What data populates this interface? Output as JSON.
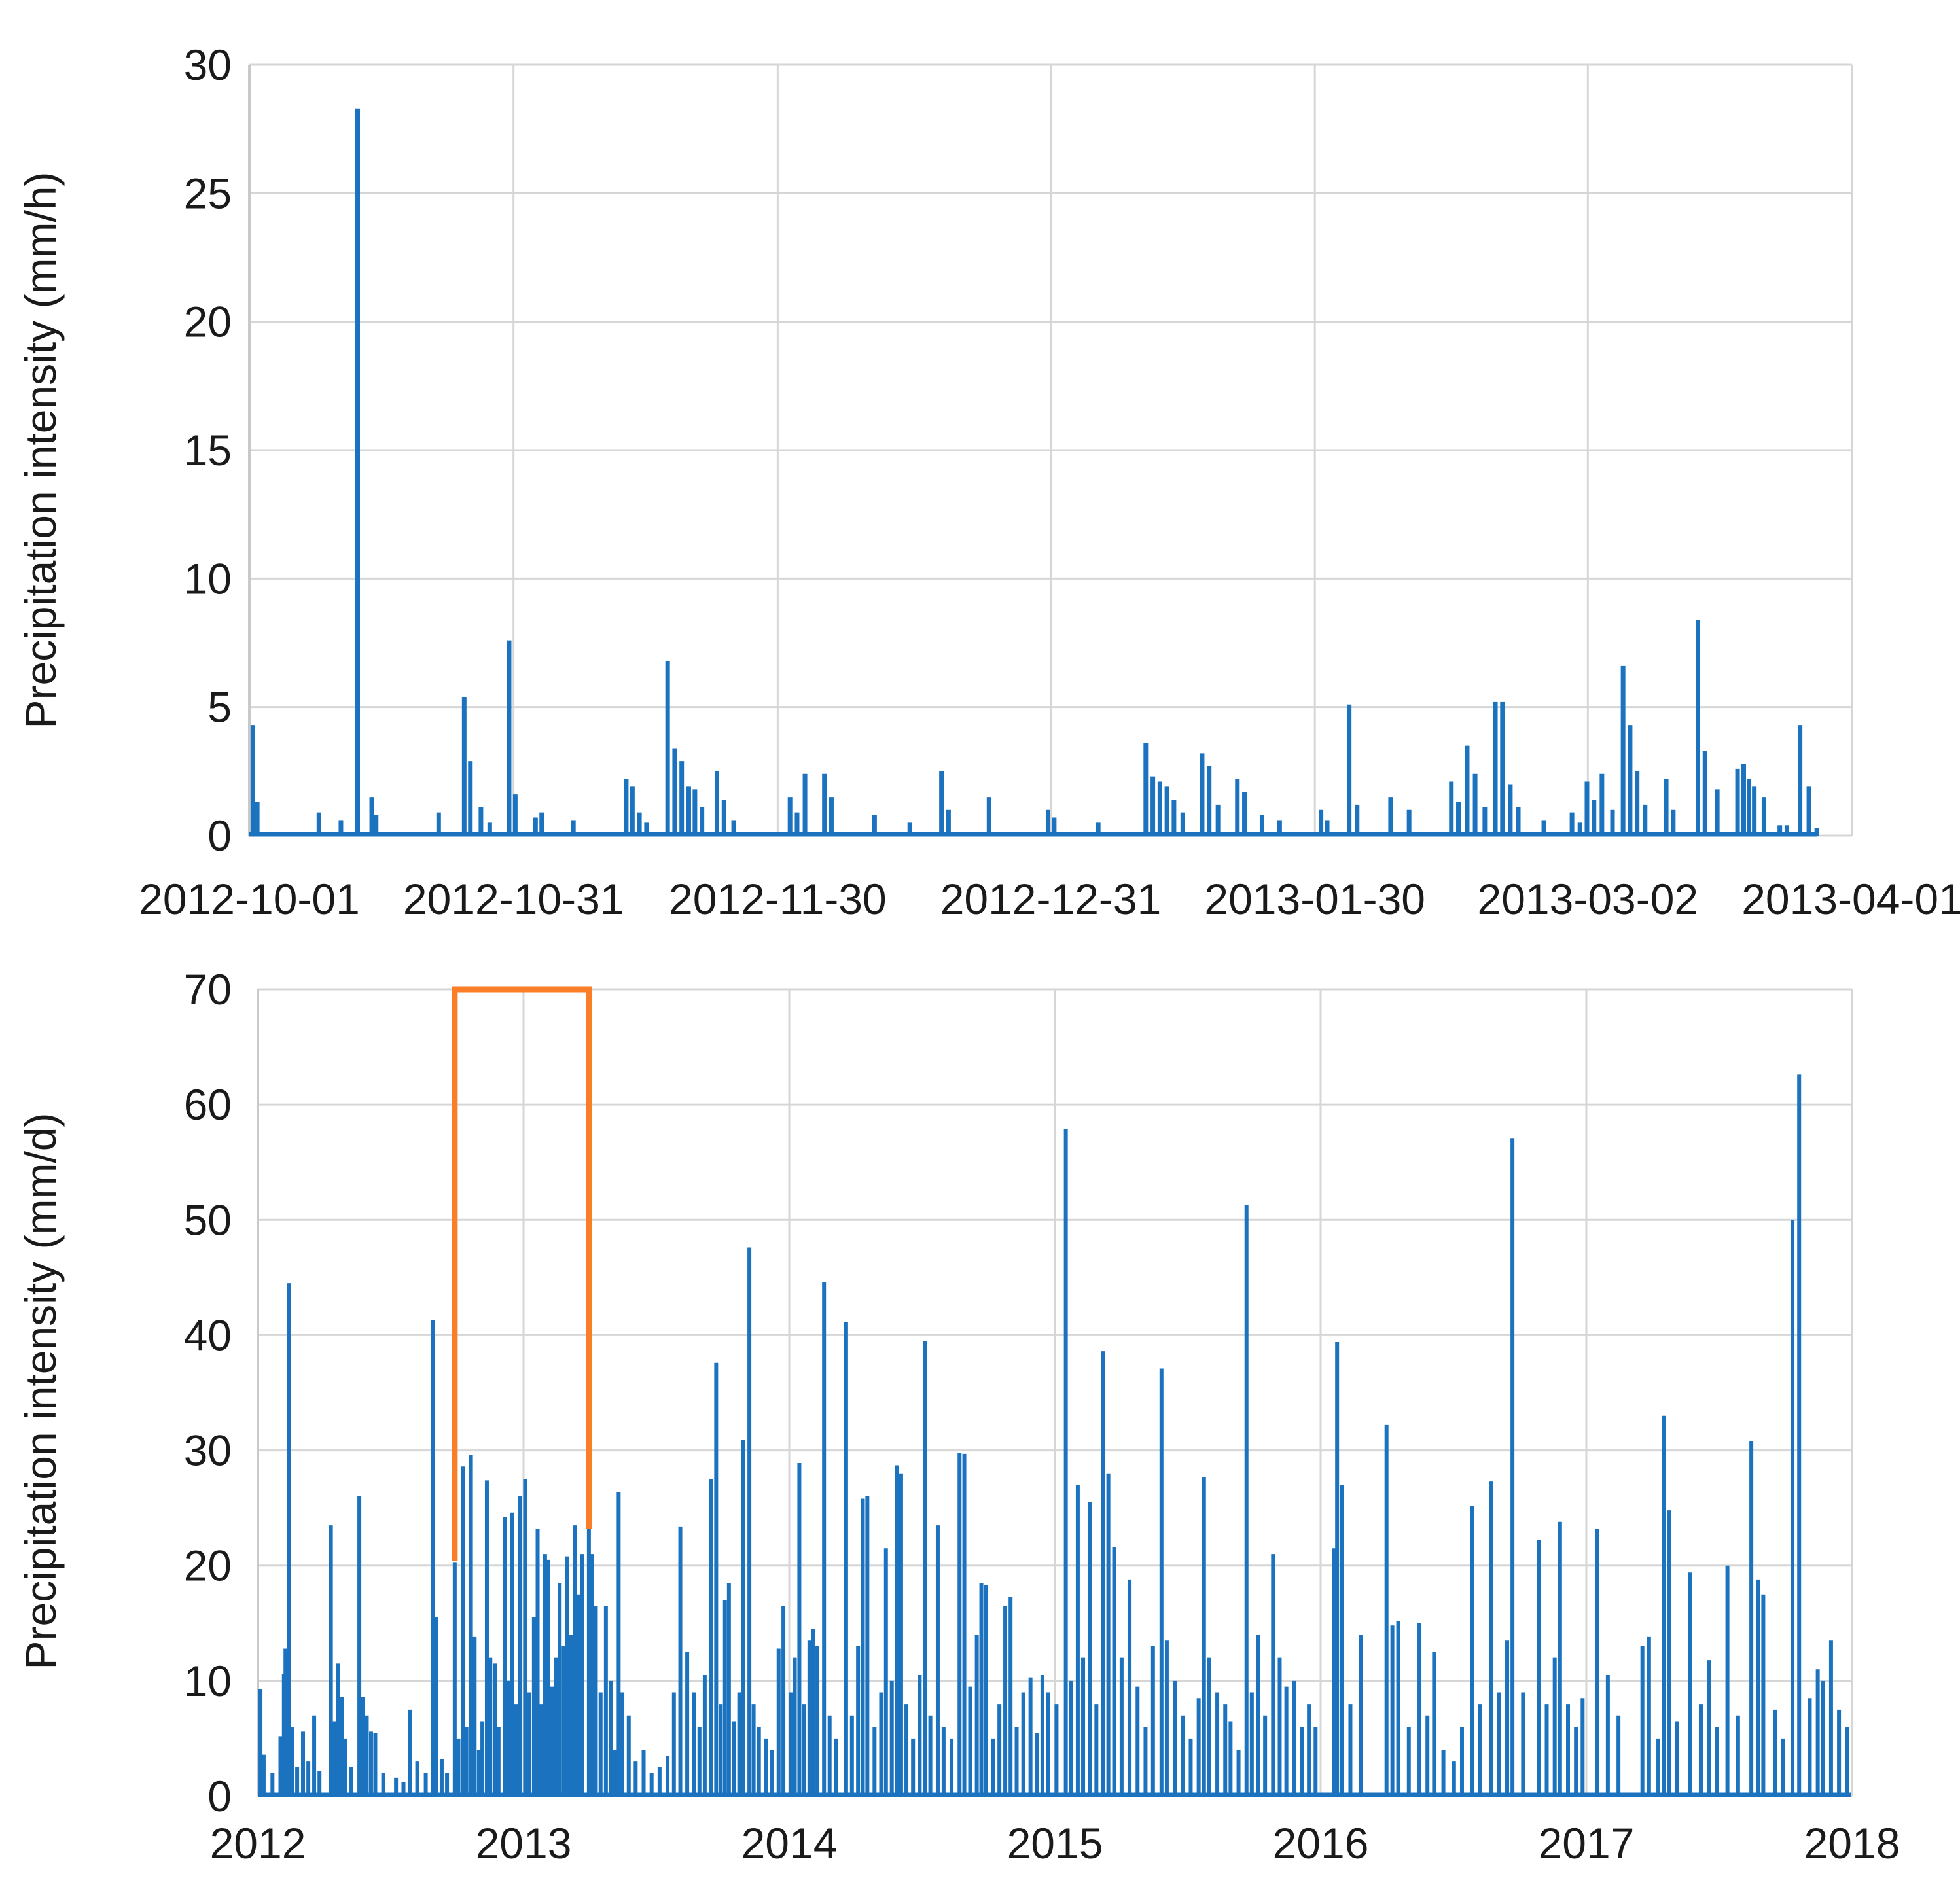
{
  "colors": {
    "bar_blue": "#1B72BE",
    "highlight_orange": "#F97E27",
    "gridline_gray": "#D6D6D6",
    "text_dark": "#1a1a1a"
  },
  "chart_data": [
    {
      "type": "bar",
      "title": "",
      "ylabel": "Precipitation intensity (mm/h)",
      "xlabel": "",
      "ylim": [
        0,
        30
      ],
      "yticks": [
        0,
        5,
        10,
        15,
        20,
        25,
        30
      ],
      "ytick_labels": [
        "0",
        "5",
        "10",
        "15",
        "20",
        "25",
        "30"
      ],
      "xtick_labels": [
        "2012-10-01",
        "2012-10-31",
        "2012-11-30",
        "2012-12-31",
        "2013-01-30",
        "2013-03-02",
        "2013-04-01"
      ],
      "xtick_positions_days": [
        0,
        30,
        60,
        91,
        121,
        152,
        182
      ],
      "x_unit": "days since 2012-10-01",
      "grid": true,
      "legend": "none",
      "series_day_mmh": [
        [
          0.4,
          4.3
        ],
        [
          0.9,
          1.3
        ],
        [
          7.9,
          0.9
        ],
        [
          10.4,
          0.6
        ],
        [
          12.3,
          28.3
        ],
        [
          13.9,
          1.5
        ],
        [
          14.4,
          0.8
        ],
        [
          21.5,
          0.9
        ],
        [
          24.4,
          5.4
        ],
        [
          25.1,
          2.9
        ],
        [
          26.3,
          1.1
        ],
        [
          27.3,
          0.5
        ],
        [
          29.5,
          7.6
        ],
        [
          30.2,
          1.6
        ],
        [
          32.5,
          0.7
        ],
        [
          33.2,
          0.9
        ],
        [
          36.8,
          0.6
        ],
        [
          42.8,
          2.2
        ],
        [
          43.5,
          1.9
        ],
        [
          44.3,
          0.9
        ],
        [
          45.1,
          0.5
        ],
        [
          47.5,
          6.8
        ],
        [
          48.3,
          3.4
        ],
        [
          49.1,
          2.9
        ],
        [
          49.9,
          1.9
        ],
        [
          50.6,
          1.8
        ],
        [
          51.4,
          1.1
        ],
        [
          53.1,
          2.5
        ],
        [
          53.9,
          1.4
        ],
        [
          55.0,
          0.6
        ],
        [
          61.4,
          1.5
        ],
        [
          62.2,
          0.9
        ],
        [
          63.1,
          2.4
        ],
        [
          65.3,
          2.4
        ],
        [
          66.1,
          1.5
        ],
        [
          71.0,
          0.8
        ],
        [
          75.0,
          0.5
        ],
        [
          78.6,
          2.5
        ],
        [
          79.4,
          1.0
        ],
        [
          84.0,
          1.5
        ],
        [
          90.7,
          1.0
        ],
        [
          91.4,
          0.7
        ],
        [
          96.4,
          0.5
        ],
        [
          101.8,
          3.6
        ],
        [
          102.6,
          2.3
        ],
        [
          103.4,
          2.1
        ],
        [
          104.2,
          1.9
        ],
        [
          105.0,
          1.4
        ],
        [
          106.0,
          0.9
        ],
        [
          108.2,
          3.2
        ],
        [
          109.0,
          2.7
        ],
        [
          110.0,
          1.2
        ],
        [
          112.2,
          2.2
        ],
        [
          113.0,
          1.7
        ],
        [
          115.0,
          0.8
        ],
        [
          117.0,
          0.6
        ],
        [
          121.7,
          1.0
        ],
        [
          122.4,
          0.6
        ],
        [
          124.9,
          5.1
        ],
        [
          125.8,
          1.2
        ],
        [
          129.6,
          1.5
        ],
        [
          131.7,
          1.0
        ],
        [
          136.5,
          2.1
        ],
        [
          137.3,
          1.3
        ],
        [
          138.3,
          3.5
        ],
        [
          139.2,
          2.4
        ],
        [
          140.3,
          1.1
        ],
        [
          141.5,
          5.2
        ],
        [
          142.3,
          5.2
        ],
        [
          143.2,
          2.0
        ],
        [
          144.1,
          1.1
        ],
        [
          147.0,
          0.6
        ],
        [
          150.2,
          0.9
        ],
        [
          151.1,
          0.5
        ],
        [
          151.9,
          2.1
        ],
        [
          152.7,
          1.4
        ],
        [
          153.6,
          2.4
        ],
        [
          154.8,
          1.0
        ],
        [
          156.0,
          6.6
        ],
        [
          156.8,
          4.3
        ],
        [
          157.6,
          2.5
        ],
        [
          158.5,
          1.2
        ],
        [
          160.9,
          2.2
        ],
        [
          161.7,
          1.0
        ],
        [
          164.5,
          8.4
        ],
        [
          165.3,
          3.3
        ],
        [
          166.7,
          1.8
        ],
        [
          169.0,
          2.6
        ],
        [
          169.7,
          2.8
        ],
        [
          170.3,
          2.2
        ],
        [
          170.9,
          1.9
        ],
        [
          172.0,
          1.5
        ],
        [
          173.8,
          0.4
        ],
        [
          174.6,
          0.4
        ],
        [
          176.1,
          4.3
        ],
        [
          177.1,
          1.9
        ],
        [
          178.0,
          0.3
        ]
      ]
    },
    {
      "type": "bar",
      "title": "",
      "ylabel": "Precipitation intensity (mm/d)",
      "xlabel": "",
      "ylim": [
        0,
        70
      ],
      "yticks": [
        0,
        10,
        20,
        30,
        40,
        50,
        60,
        70
      ],
      "ytick_labels": [
        "0",
        "10",
        "20",
        "30",
        "40",
        "50",
        "60",
        "70"
      ],
      "xtick_labels": [
        "2012",
        "2013",
        "2014",
        "2015",
        "2016",
        "2017",
        "2018"
      ],
      "xtick_positions_years": [
        0,
        1,
        2,
        3,
        4,
        5,
        6
      ],
      "x_unit": "decimal years since 2012-01-01",
      "grid": true,
      "legend": "none",
      "highlight_box": {
        "x_start_year": 0.741,
        "x_end_year": 1.246,
        "y_top": 70,
        "y_left_bottom": 20.4,
        "y_right_bottom": 23.2,
        "meaning": "period shown in upper chart (2012-10-01 to 2013-04-01)"
      },
      "series_year_mmd": [
        [
          0.01,
          9.3
        ],
        [
          0.022,
          3.6
        ],
        [
          0.055,
          2.0
        ],
        [
          0.085,
          5.2
        ],
        [
          0.098,
          10.6
        ],
        [
          0.104,
          12.8
        ],
        [
          0.118,
          44.5
        ],
        [
          0.13,
          6.0
        ],
        [
          0.148,
          2.5
        ],
        [
          0.17,
          5.6
        ],
        [
          0.19,
          3.0
        ],
        [
          0.212,
          7.0
        ],
        [
          0.232,
          2.2
        ],
        [
          0.275,
          23.5
        ],
        [
          0.288,
          6.5
        ],
        [
          0.302,
          11.5
        ],
        [
          0.316,
          8.6
        ],
        [
          0.33,
          5.0
        ],
        [
          0.352,
          2.5
        ],
        [
          0.382,
          26.0
        ],
        [
          0.395,
          8.6
        ],
        [
          0.41,
          7.0
        ],
        [
          0.426,
          5.6
        ],
        [
          0.442,
          5.5
        ],
        [
          0.472,
          2.0
        ],
        [
          0.52,
          1.6
        ],
        [
          0.548,
          1.2
        ],
        [
          0.572,
          7.5
        ],
        [
          0.6,
          3.0
        ],
        [
          0.632,
          2.0
        ],
        [
          0.658,
          41.3
        ],
        [
          0.67,
          15.5
        ],
        [
          0.692,
          3.2
        ],
        [
          0.712,
          2.0
        ],
        [
          0.741,
          20.3
        ],
        [
          0.755,
          5.0
        ],
        [
          0.772,
          28.6
        ],
        [
          0.785,
          6.0
        ],
        [
          0.802,
          29.6
        ],
        [
          0.816,
          13.8
        ],
        [
          0.832,
          4.0
        ],
        [
          0.845,
          6.5
        ],
        [
          0.862,
          27.4
        ],
        [
          0.875,
          12.0
        ],
        [
          0.892,
          11.5
        ],
        [
          0.906,
          6.0
        ],
        [
          0.93,
          24.2
        ],
        [
          0.944,
          10.0
        ],
        [
          0.958,
          24.6
        ],
        [
          0.971,
          8.0
        ],
        [
          0.986,
          26.0
        ],
        [
          1.006,
          27.5
        ],
        [
          1.021,
          9.0
        ],
        [
          1.039,
          15.5
        ],
        [
          1.053,
          23.2
        ],
        [
          1.066,
          8.0
        ],
        [
          1.081,
          21.0
        ],
        [
          1.093,
          20.5
        ],
        [
          1.106,
          9.5
        ],
        [
          1.121,
          12.0
        ],
        [
          1.136,
          18.5
        ],
        [
          1.151,
          13.0
        ],
        [
          1.164,
          20.8
        ],
        [
          1.179,
          14.0
        ],
        [
          1.193,
          23.5
        ],
        [
          1.206,
          17.5
        ],
        [
          1.22,
          21.0
        ],
        [
          1.246,
          23.3
        ],
        [
          1.258,
          21.0
        ],
        [
          1.272,
          16.5
        ],
        [
          1.29,
          9.0
        ],
        [
          1.31,
          16.5
        ],
        [
          1.33,
          10.0
        ],
        [
          1.344,
          4.0
        ],
        [
          1.358,
          26.4
        ],
        [
          1.372,
          9.0
        ],
        [
          1.396,
          7.0
        ],
        [
          1.422,
          3.0
        ],
        [
          1.452,
          4.0
        ],
        [
          1.482,
          2.0
        ],
        [
          1.512,
          2.5
        ],
        [
          1.542,
          3.5
        ],
        [
          1.566,
          9.0
        ],
        [
          1.59,
          23.4
        ],
        [
          1.616,
          12.5
        ],
        [
          1.642,
          9.0
        ],
        [
          1.662,
          6.0
        ],
        [
          1.682,
          10.5
        ],
        [
          1.706,
          27.5
        ],
        [
          1.725,
          37.6
        ],
        [
          1.742,
          8.0
        ],
        [
          1.758,
          17.0
        ],
        [
          1.773,
          18.5
        ],
        [
          1.792,
          6.5
        ],
        [
          1.812,
          9.0
        ],
        [
          1.827,
          30.9
        ],
        [
          1.85,
          47.6
        ],
        [
          1.866,
          8.0
        ],
        [
          1.886,
          6.0
        ],
        [
          1.912,
          5.0
        ],
        [
          1.936,
          4.0
        ],
        [
          1.96,
          12.8
        ],
        [
          1.978,
          16.5
        ],
        [
          2.006,
          9.0
        ],
        [
          2.021,
          12.0
        ],
        [
          2.038,
          28.9
        ],
        [
          2.056,
          8.0
        ],
        [
          2.076,
          13.5
        ],
        [
          2.091,
          14.5
        ],
        [
          2.106,
          13.0
        ],
        [
          2.131,
          44.6
        ],
        [
          2.152,
          7.0
        ],
        [
          2.176,
          5.0
        ],
        [
          2.214,
          41.1
        ],
        [
          2.236,
          7.0
        ],
        [
          2.259,
          13.0
        ],
        [
          2.277,
          25.8
        ],
        [
          2.294,
          26.0
        ],
        [
          2.321,
          6.0
        ],
        [
          2.346,
          9.0
        ],
        [
          2.364,
          21.5
        ],
        [
          2.386,
          10.0
        ],
        [
          2.404,
          28.7
        ],
        [
          2.421,
          28.0
        ],
        [
          2.441,
          8.0
        ],
        [
          2.466,
          5.0
        ],
        [
          2.491,
          10.5
        ],
        [
          2.511,
          39.5
        ],
        [
          2.531,
          7.0
        ],
        [
          2.559,
          23.5
        ],
        [
          2.581,
          6.0
        ],
        [
          2.611,
          5.0
        ],
        [
          2.641,
          29.8
        ],
        [
          2.659,
          29.7
        ],
        [
          2.681,
          9.5
        ],
        [
          2.706,
          14.0
        ],
        [
          2.723,
          18.5
        ],
        [
          2.741,
          18.3
        ],
        [
          2.766,
          5.0
        ],
        [
          2.791,
          8.0
        ],
        [
          2.813,
          16.5
        ],
        [
          2.833,
          17.3
        ],
        [
          2.856,
          6.0
        ],
        [
          2.881,
          9.0
        ],
        [
          2.908,
          10.3
        ],
        [
          2.931,
          5.5
        ],
        [
          2.953,
          10.5
        ],
        [
          2.973,
          9.0
        ],
        [
          3.006,
          8.0
        ],
        [
          3.041,
          57.9
        ],
        [
          3.061,
          10.0
        ],
        [
          3.086,
          27.0
        ],
        [
          3.106,
          12.0
        ],
        [
          3.131,
          25.5
        ],
        [
          3.156,
          8.0
        ],
        [
          3.181,
          38.6
        ],
        [
          3.201,
          28.0
        ],
        [
          3.223,
          21.6
        ],
        [
          3.251,
          12.0
        ],
        [
          3.281,
          18.8
        ],
        [
          3.311,
          9.5
        ],
        [
          3.341,
          6.0
        ],
        [
          3.369,
          13.0
        ],
        [
          3.401,
          37.1
        ],
        [
          3.421,
          13.5
        ],
        [
          3.451,
          10.0
        ],
        [
          3.481,
          7.0
        ],
        [
          3.511,
          5.0
        ],
        [
          3.541,
          8.5
        ],
        [
          3.561,
          27.7
        ],
        [
          3.581,
          12.0
        ],
        [
          3.611,
          9.0
        ],
        [
          3.641,
          8.0
        ],
        [
          3.661,
          6.5
        ],
        [
          3.691,
          4.0
        ],
        [
          3.721,
          51.3
        ],
        [
          3.741,
          9.0
        ],
        [
          3.766,
          14.0
        ],
        [
          3.791,
          7.0
        ],
        [
          3.821,
          21.0
        ],
        [
          3.846,
          12.0
        ],
        [
          3.871,
          9.5
        ],
        [
          3.901,
          10.0
        ],
        [
          3.931,
          6.0
        ],
        [
          3.956,
          8.0
        ],
        [
          3.981,
          6.0
        ],
        [
          4.05,
          21.5
        ],
        [
          4.062,
          39.4
        ],
        [
          4.08,
          27.0
        ],
        [
          4.112,
          8.0
        ],
        [
          4.152,
          14.0
        ],
        [
          4.248,
          32.2
        ],
        [
          4.27,
          14.8
        ],
        [
          4.292,
          15.2
        ],
        [
          4.332,
          6.0
        ],
        [
          4.372,
          15.0
        ],
        [
          4.402,
          7.0
        ],
        [
          4.427,
          12.5
        ],
        [
          4.462,
          4.0
        ],
        [
          4.502,
          3.0
        ],
        [
          4.532,
          6.0
        ],
        [
          4.571,
          25.2
        ],
        [
          4.601,
          8.0
        ],
        [
          4.641,
          27.3
        ],
        [
          4.671,
          9.0
        ],
        [
          4.702,
          13.5
        ],
        [
          4.722,
          57.1
        ],
        [
          4.762,
          9.0
        ],
        [
          4.821,
          22.2
        ],
        [
          4.851,
          8.0
        ],
        [
          4.881,
          12.0
        ],
        [
          4.901,
          23.8
        ],
        [
          4.931,
          8.0
        ],
        [
          4.961,
          6.0
        ],
        [
          4.986,
          8.5
        ],
        [
          5.041,
          23.2
        ],
        [
          5.081,
          10.5
        ],
        [
          5.121,
          7.0
        ],
        [
          5.211,
          13.0
        ],
        [
          5.236,
          13.8
        ],
        [
          5.271,
          5.0
        ],
        [
          5.291,
          33.0
        ],
        [
          5.311,
          24.8
        ],
        [
          5.341,
          6.5
        ],
        [
          5.391,
          19.4
        ],
        [
          5.431,
          8.0
        ],
        [
          5.461,
          11.8
        ],
        [
          5.491,
          6.0
        ],
        [
          5.531,
          20.0
        ],
        [
          5.571,
          7.0
        ],
        [
          5.621,
          30.8
        ],
        [
          5.646,
          18.8
        ],
        [
          5.666,
          17.5
        ],
        [
          5.711,
          7.5
        ],
        [
          5.741,
          5.0
        ],
        [
          5.776,
          50.0
        ],
        [
          5.801,
          62.6
        ],
        [
          5.841,
          8.5
        ],
        [
          5.871,
          11.0
        ],
        [
          5.891,
          10.0
        ],
        [
          5.921,
          13.5
        ],
        [
          5.951,
          7.5
        ],
        [
          5.981,
          6.0
        ]
      ]
    }
  ]
}
